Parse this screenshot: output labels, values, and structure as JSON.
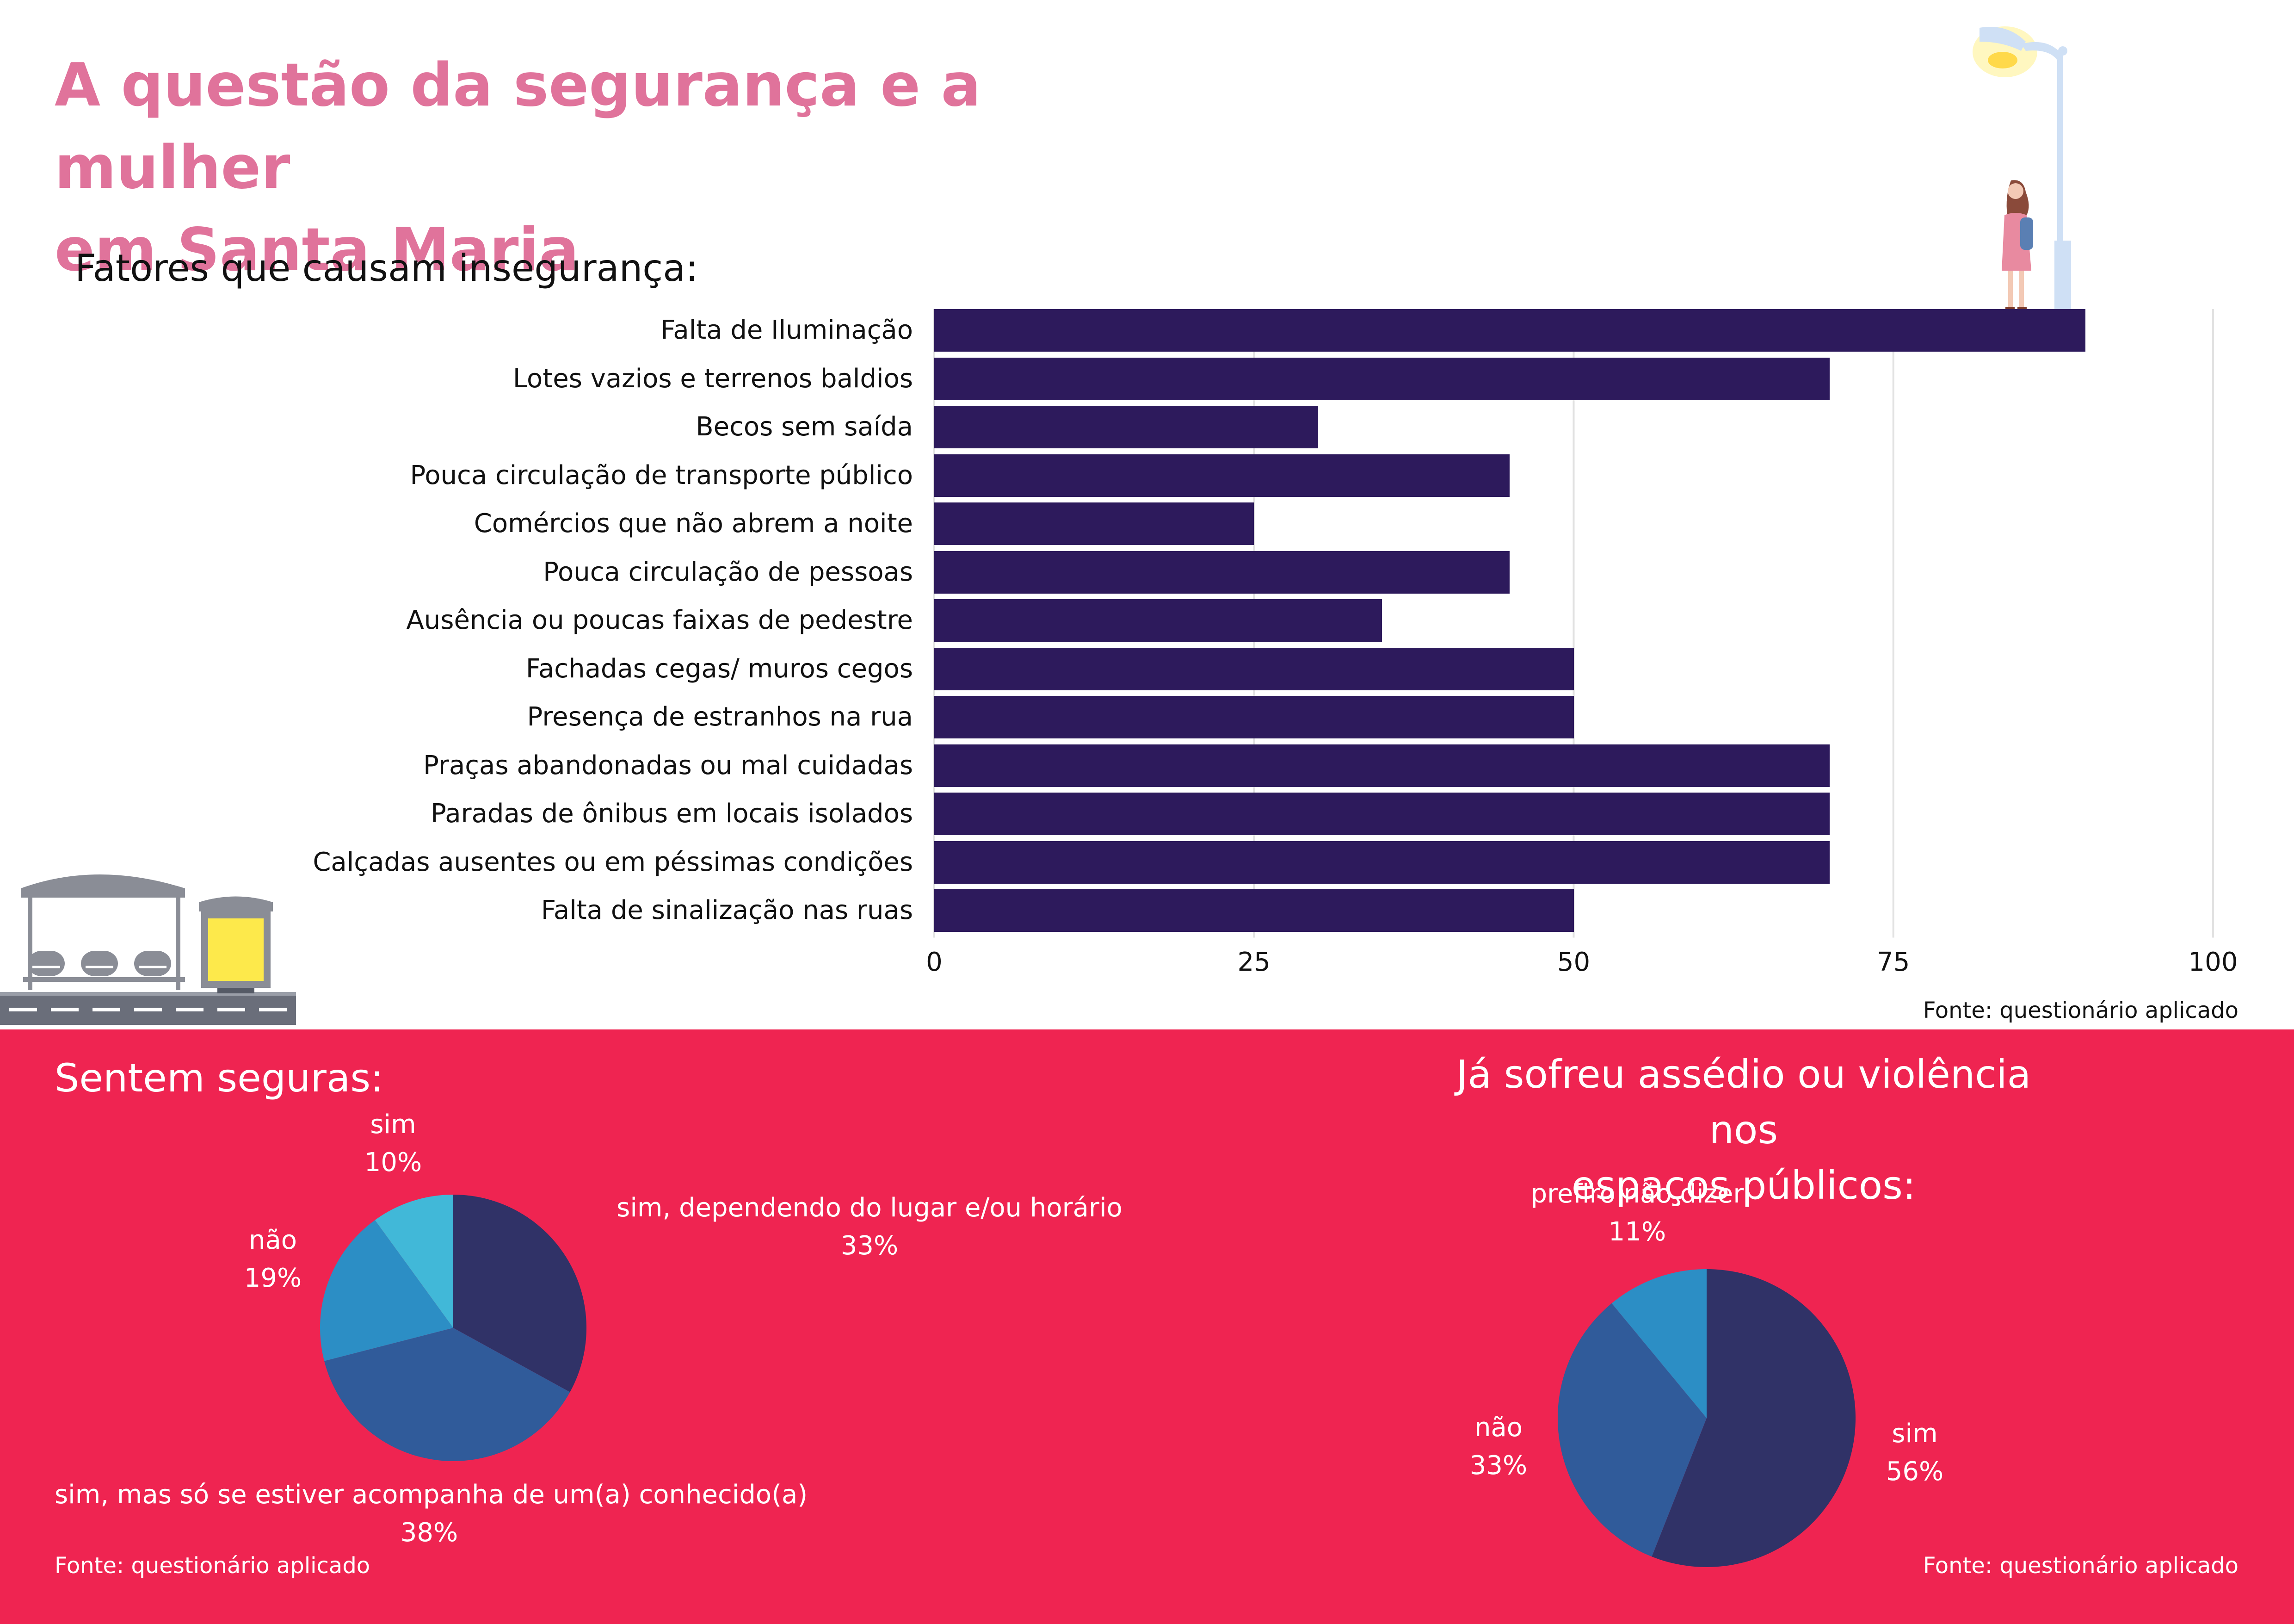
{
  "header": {
    "title_line1": "A questão da segurança e a mulher",
    "title_line2": "em Santa Maria"
  },
  "colors": {
    "title": "#e0739b",
    "bar": "#2d1a5c",
    "panel": "#ef2451",
    "pie1": [
      "#303267",
      "#305b9a",
      "#2c8ec5",
      "#41b8d8"
    ],
    "pie2": [
      "#303267",
      "#305b9a",
      "#2c8ec5"
    ]
  },
  "bar_section": {
    "subtitle": "Fatores que causam insegurança:",
    "source": "Fonte: questionário aplicado"
  },
  "left_pie": {
    "title": "Sentem seguras:",
    "source": "Fonte: questionário aplicado"
  },
  "right_pie": {
    "title_line1": "Já sofreu assédio ou violência nos",
    "title_line2": "espaços públicos:",
    "source": "Fonte: questionário aplicado"
  },
  "icons": [
    "street-lamp-icon",
    "woman-icon",
    "bus-stop-icon"
  ],
  "chart_data": [
    {
      "type": "bar",
      "orientation": "horizontal",
      "title": "Fatores que causam insegurança:",
      "categories": [
        "Falta de Iluminação",
        "Lotes vazios e terrenos baldios",
        "Becos sem saída",
        "Pouca circulação de transporte público",
        "Comércios que não abrem a noite",
        "Pouca circulação de pessoas",
        "Ausência ou poucas faixas de pedestre",
        "Fachadas cegas/ muros cegos",
        "Presença de estranhos na rua",
        "Praças abandonadas ou mal cuidadas",
        "Paradas de ônibus em locais isolados",
        "Calçadas ausentes ou em péssimas condições",
        "Falta de sinalização nas ruas"
      ],
      "values": [
        90,
        70,
        30,
        45,
        25,
        45,
        35,
        50,
        50,
        70,
        70,
        70,
        50
      ],
      "xlim": [
        0,
        100
      ],
      "xticks": [
        "0",
        "25",
        "50",
        "75",
        "100"
      ],
      "grid": "vertical"
    },
    {
      "type": "pie",
      "title": "Sentem seguras:",
      "slices": [
        {
          "label": "sim, dependendo do lugar e/ou horário",
          "value": 33,
          "pct": "33%"
        },
        {
          "label": "sim, mas só se estiver acompanha de um(a) conhecido(a)",
          "value": 38,
          "pct": "38%"
        },
        {
          "label": "não",
          "value": 19,
          "pct": "19%"
        },
        {
          "label": "sim",
          "value": 10,
          "pct": "10%"
        }
      ]
    },
    {
      "type": "pie",
      "title": "Já sofreu assédio ou violência nos espaços públicos:",
      "slices": [
        {
          "label": "sim",
          "value": 56,
          "pct": "56%"
        },
        {
          "label": "não",
          "value": 33,
          "pct": "33%"
        },
        {
          "label": "prefiro não dizer",
          "value": 11,
          "pct": "11%"
        }
      ]
    }
  ]
}
